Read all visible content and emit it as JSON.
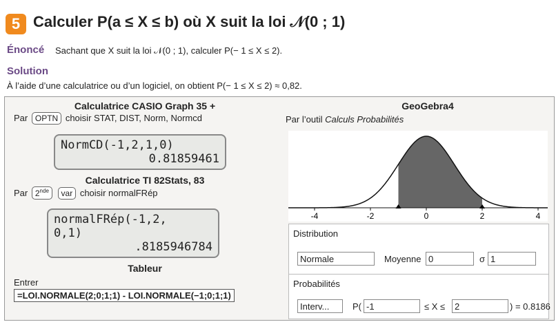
{
  "header": {
    "number": "5",
    "title": "Calculer P(a ≤ X ≤ b) où X suit la loi 𝒩(0 ; 1)"
  },
  "enonce": {
    "label": "Énoncé",
    "text": "Sachant que X suit la loi 𝒩(0 ; 1), calculer P(− 1 ≤ X ≤ 2)."
  },
  "solution": {
    "label": "Solution",
    "text": "À l’aide d’une calculatrice ou d’un logiciel, on obtient P(− 1 ≤ X ≤ 2) ≈ 0,82."
  },
  "casio": {
    "title": "Calculatrice CASIO Graph 35 +",
    "par": "Par",
    "key": "OPTN",
    "instruction": "choisir STAT, DIST, Norm, Normcd",
    "screen": [
      "NormCD(-1,2,1,0)",
      "0.81859461"
    ]
  },
  "ti": {
    "title": "Calculatrice TI 82Stats, 83",
    "par": "Par",
    "key1": {
      "base": "2",
      "sup": "nde"
    },
    "key2": "var",
    "instruction": "choisir normalFRép",
    "screen": [
      "normalFRép(-1,2,",
      "0,1)",
      ".8185946784"
    ]
  },
  "tableur": {
    "title": "Tableur",
    "label": "Entrer",
    "formula": "=LOI.NORMALE(2;0;1;1) - LOI.NORMALE(−1;0;1;1)"
  },
  "geogebra": {
    "title": "GeoGebra4",
    "intro": "Par l’outil",
    "tool": "Calculs Probabilités",
    "axis_ticks": [
      -4,
      -2,
      0,
      2,
      4
    ],
    "distribution": {
      "label": "Distribution",
      "select": "Normale",
      "mean_label": "Moyenne",
      "mean": 0,
      "sigma_label": "σ",
      "sigma": 1
    },
    "probabilites": {
      "label": "Probabilités",
      "select": "Interv...",
      "p_open": "P(",
      "lower": -1,
      "between": "≤ X ≤",
      "upper": 2,
      "result": ") = 0.8186"
    }
  }
}
